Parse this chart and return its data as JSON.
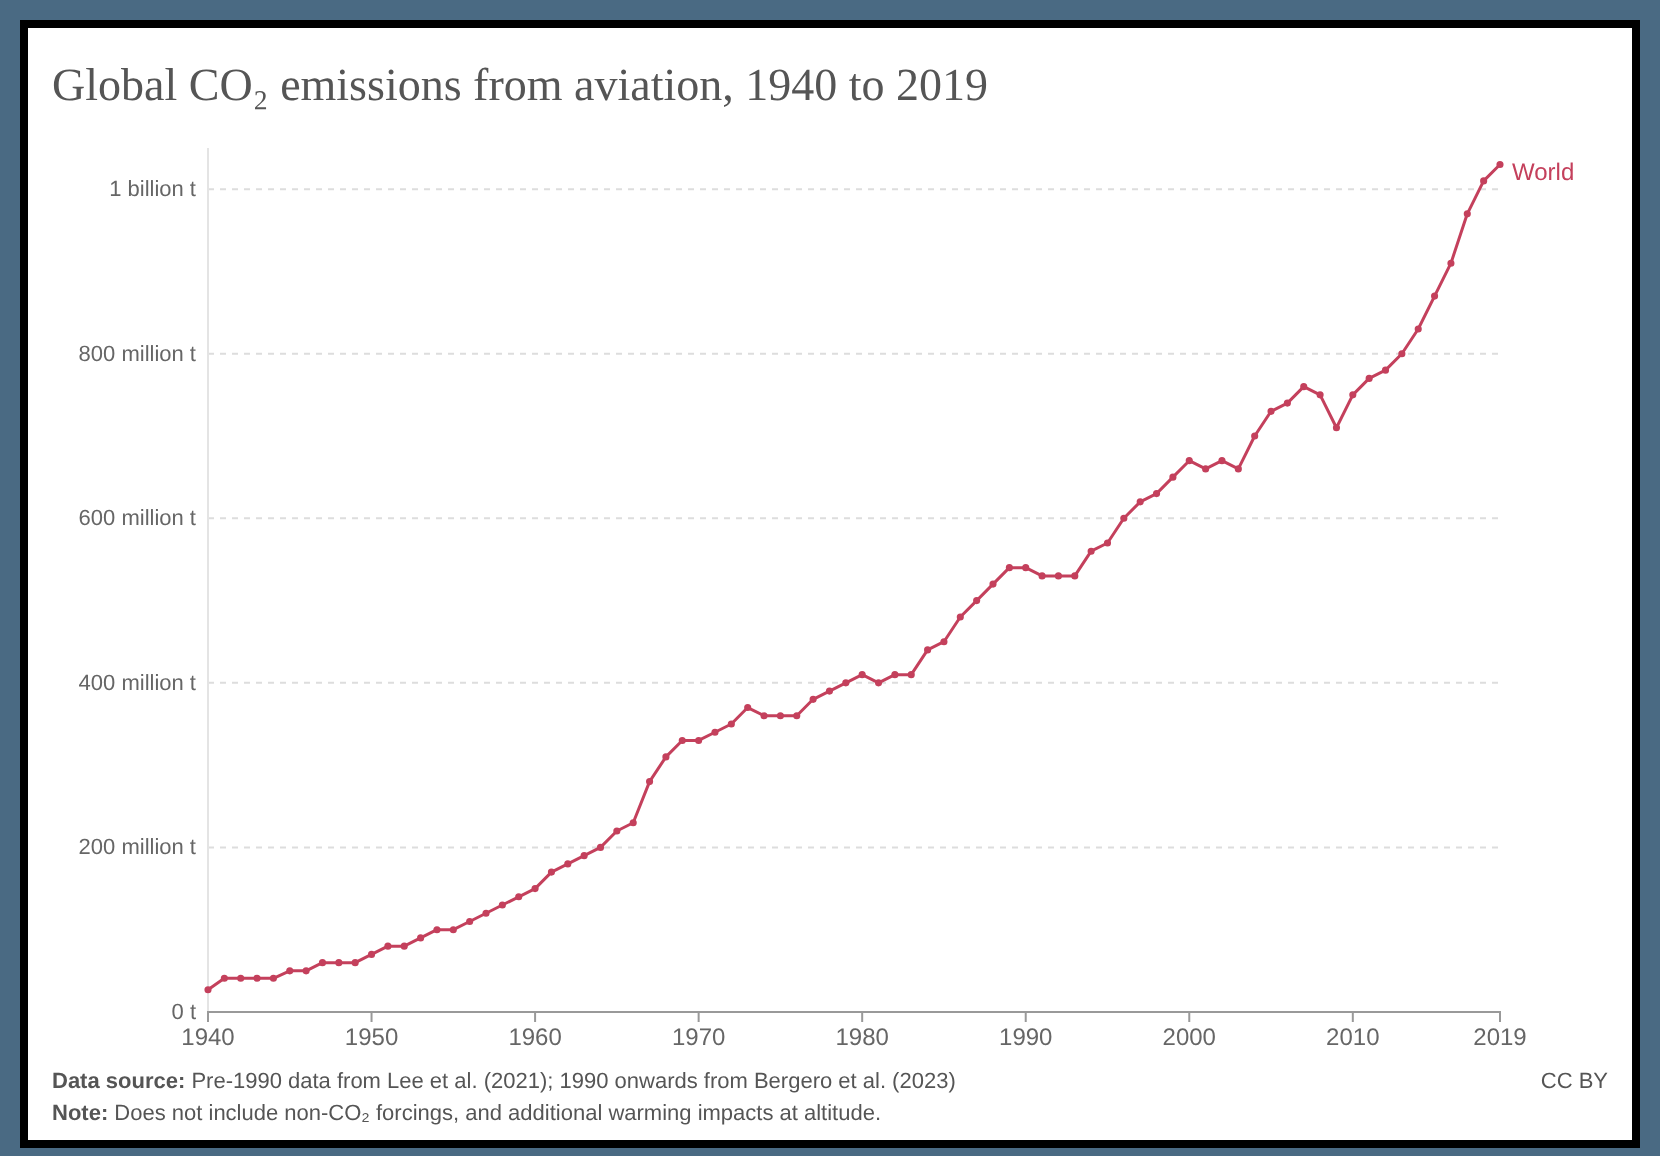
{
  "chart_data": {
    "type": "line",
    "title": "Global CO₂ emissions from aviation, 1940 to 2019",
    "x": [
      1940,
      1941,
      1942,
      1943,
      1944,
      1945,
      1946,
      1947,
      1948,
      1949,
      1950,
      1951,
      1952,
      1953,
      1954,
      1955,
      1956,
      1957,
      1958,
      1959,
      1960,
      1961,
      1962,
      1963,
      1964,
      1965,
      1966,
      1967,
      1968,
      1969,
      1970,
      1971,
      1972,
      1973,
      1974,
      1975,
      1976,
      1977,
      1978,
      1979,
      1980,
      1981,
      1982,
      1983,
      1984,
      1985,
      1986,
      1987,
      1988,
      1989,
      1990,
      1991,
      1992,
      1993,
      1994,
      1995,
      1996,
      1997,
      1998,
      1999,
      2000,
      2001,
      2002,
      2003,
      2004,
      2005,
      2006,
      2007,
      2008,
      2009,
      2010,
      2011,
      2012,
      2013,
      2014,
      2015,
      2016,
      2017,
      2018,
      2019
    ],
    "series": [
      {
        "name": "World",
        "color": "#c4405c",
        "values": [
          27000000,
          41000000,
          41000000,
          41000000,
          41000000,
          50000000,
          50000000,
          60000000,
          60000000,
          60000000,
          70000000,
          80000000,
          80000000,
          90000000,
          100000000,
          100000000,
          110000000,
          120000000,
          130000000,
          140000000,
          150000000,
          170000000,
          180000000,
          190000000,
          200000000,
          220000000,
          230000000,
          280000000,
          310000000,
          330000000,
          330000000,
          340000000,
          350000000,
          370000000,
          360000000,
          360000000,
          360000000,
          380000000,
          390000000,
          400000000,
          410000000,
          400000000,
          410000000,
          410000000,
          440000000,
          450000000,
          480000000,
          500000000,
          520000000,
          540000000,
          540000000,
          530000000,
          530000000,
          530000000,
          560000000,
          570000000,
          600000000,
          620000000,
          630000000,
          650000000,
          670000000,
          660000000,
          670000000,
          660000000,
          700000000,
          730000000,
          740000000,
          760000000,
          750000000,
          710000000,
          750000000,
          770000000,
          780000000,
          800000000,
          830000000,
          870000000,
          910000000,
          970000000,
          1010000000,
          1030000000
        ]
      }
    ],
    "xlim": [
      1940,
      2019
    ],
    "xticks": [
      1940,
      1950,
      1960,
      1970,
      1980,
      1990,
      2000,
      2010,
      2019
    ],
    "ylim": [
      0,
      1050000000
    ],
    "yticks": [
      {
        "value": 0,
        "label": "0 t"
      },
      {
        "value": 200000000,
        "label": "200 million t"
      },
      {
        "value": 400000000,
        "label": "400 million t"
      },
      {
        "value": 600000000,
        "label": "600 million t"
      },
      {
        "value": 800000000,
        "label": "800 million t"
      },
      {
        "value": 1000000000,
        "label": "1 billion t"
      }
    ],
    "grid": "y",
    "marker": "circle",
    "line_style": "solid",
    "annotations": [
      "Data source: Pre-1990 data from Lee et al. (2021); 1990 onwards from Bergero et al. (2023)",
      "CC BY",
      "Note: Does not include non-CO₂ forcings, and additional warming impacts at altitude."
    ]
  }
}
